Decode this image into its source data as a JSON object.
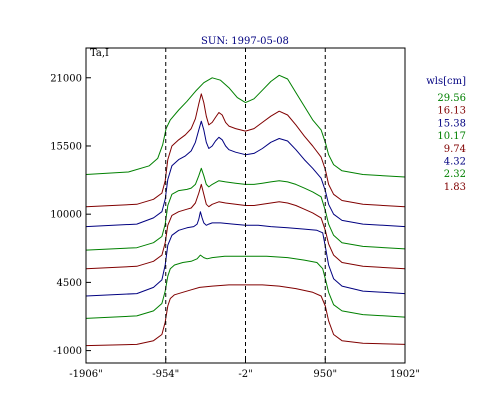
{
  "chart_data": {
    "type": "line",
    "title": "SUN: 1997-05-08",
    "ylabel": "Ta,I",
    "xlim": [
      -1906,
      1902
    ],
    "ylim": [
      -2000,
      23400
    ],
    "x_ticks": [
      {
        "value": -1906,
        "label": "-1906\""
      },
      {
        "value": -954,
        "label": "-954\""
      },
      {
        "value": -2,
        "label": "-2\""
      },
      {
        "value": 950,
        "label": "950\""
      },
      {
        "value": 1902,
        "label": "1902\""
      }
    ],
    "y_ticks": [
      {
        "value": 21000,
        "label": "21000"
      },
      {
        "value": 15500,
        "label": "15500"
      },
      {
        "value": 10000,
        "label": "10000"
      },
      {
        "value": 4500,
        "label": "4500"
      },
      {
        "value": -1000,
        "label": "-1000"
      }
    ],
    "vlines": [
      -954,
      -2,
      950
    ],
    "grid": false,
    "legend": {
      "title": "wls[cm]",
      "placement": "right",
      "entries": [
        {
          "label": "29.56",
          "color": "#008000"
        },
        {
          "label": "16.13",
          "color": "#800000"
        },
        {
          "label": "15.38",
          "color": "#000080"
        },
        {
          "label": "10.17",
          "color": "#008000"
        },
        {
          "label": "9.74",
          "color": "#800000"
        },
        {
          "label": "4.32",
          "color": "#000080"
        },
        {
          "label": "2.32",
          "color": "#008000"
        },
        {
          "label": "1.83",
          "color": "#800000"
        }
      ]
    },
    "series": [
      {
        "name": "29.56",
        "color": "#008000",
        "x": [
          -1906,
          -1400,
          -1150,
          -1050,
          -990,
          -950,
          -900,
          -800,
          -700,
          -600,
          -500,
          -400,
          -300,
          -200,
          -100,
          -2,
          100,
          200,
          300,
          400,
          500,
          600,
          700,
          800,
          900,
          950,
          990,
          1050,
          1150,
          1400,
          1902
        ],
        "y": [
          13200,
          13400,
          13900,
          14500,
          15600,
          16900,
          17600,
          18400,
          19100,
          19900,
          20600,
          21000,
          20800,
          20200,
          19400,
          19000,
          19300,
          20000,
          20700,
          21200,
          20900,
          19800,
          18700,
          17600,
          16800,
          15800,
          14800,
          14000,
          13500,
          13200,
          13000
        ]
      },
      {
        "name": "16.13",
        "color": "#800000",
        "x": [
          -1906,
          -1300,
          -1100,
          -1000,
          -960,
          -930,
          -880,
          -800,
          -720,
          -650,
          -600,
          -560,
          -530,
          -500,
          -470,
          -440,
          -400,
          -360,
          -320,
          -280,
          -240,
          -200,
          -120,
          -2,
          100,
          200,
          300,
          400,
          500,
          600,
          700,
          800,
          900,
          950,
          990,
          1050,
          1150,
          1400,
          1902
        ],
        "y": [
          10600,
          10800,
          11200,
          11700,
          12700,
          14400,
          15500,
          16000,
          16400,
          16900,
          17700,
          18900,
          19700,
          19000,
          17900,
          17200,
          17400,
          17800,
          18200,
          18000,
          17400,
          17100,
          16900,
          16700,
          16900,
          17400,
          17900,
          18300,
          18000,
          17200,
          16300,
          15500,
          14600,
          13600,
          12400,
          11600,
          11100,
          10800,
          10600
        ]
      },
      {
        "name": "15.38",
        "color": "#000080",
        "x": [
          -1906,
          -1300,
          -1100,
          -1000,
          -960,
          -930,
          -880,
          -800,
          -720,
          -650,
          -600,
          -560,
          -530,
          -500,
          -470,
          -440,
          -400,
          -360,
          -320,
          -280,
          -240,
          -200,
          -120,
          -2,
          100,
          200,
          300,
          400,
          500,
          600,
          700,
          800,
          900,
          950,
          990,
          1050,
          1150,
          1400,
          1902
        ],
        "y": [
          9000,
          9200,
          9700,
          10200,
          11200,
          12800,
          13900,
          14400,
          14700,
          15100,
          15800,
          16800,
          17500,
          16800,
          15800,
          15300,
          15500,
          15900,
          16200,
          16000,
          15500,
          15200,
          15000,
          14800,
          14900,
          15300,
          15800,
          16100,
          15900,
          15200,
          14400,
          13700,
          12900,
          11900,
          10800,
          10000,
          9500,
          9200,
          9000
        ]
      },
      {
        "name": "10.17",
        "color": "#008000",
        "x": [
          -1906,
          -1300,
          -1100,
          -1000,
          -960,
          -930,
          -880,
          -800,
          -700,
          -650,
          -600,
          -560,
          -530,
          -500,
          -470,
          -440,
          -400,
          -320,
          -240,
          -120,
          -2,
          100,
          200,
          300,
          400,
          500,
          600,
          700,
          800,
          900,
          950,
          990,
          1050,
          1150,
          1400,
          1902
        ],
        "y": [
          7100,
          7300,
          7700,
          8200,
          9200,
          10700,
          11600,
          11900,
          12000,
          12100,
          12400,
          13100,
          13700,
          13100,
          12400,
          12200,
          12400,
          12700,
          12600,
          12500,
          12400,
          12400,
          12500,
          12600,
          12700,
          12600,
          12400,
          12100,
          11800,
          11400,
          10300,
          9200,
          8300,
          7700,
          7400,
          7200
        ]
      },
      {
        "name": "9.74",
        "color": "#800000",
        "x": [
          -1906,
          -1300,
          -1100,
          -1000,
          -960,
          -930,
          -880,
          -800,
          -700,
          -650,
          -600,
          -560,
          -530,
          -500,
          -470,
          -440,
          -400,
          -320,
          -240,
          -120,
          -2,
          100,
          200,
          300,
          400,
          500,
          600,
          700,
          800,
          900,
          950,
          990,
          1050,
          1150,
          1400,
          1902
        ],
        "y": [
          5600,
          5800,
          6200,
          6700,
          7700,
          9100,
          9900,
          10200,
          10400,
          10500,
          10900,
          11700,
          12400,
          11600,
          10800,
          10600,
          10800,
          11000,
          10900,
          10800,
          10700,
          10700,
          10800,
          10900,
          11000,
          10900,
          10700,
          10400,
          10100,
          9700,
          8700,
          7600,
          6700,
          6100,
          5800,
          5600
        ]
      },
      {
        "name": "4.32",
        "color": "#000080",
        "x": [
          -1906,
          -1300,
          -1100,
          -1000,
          -960,
          -930,
          -880,
          -800,
          -700,
          -620,
          -580,
          -560,
          -540,
          -520,
          -500,
          -470,
          -440,
          -400,
          -300,
          -150,
          -2,
          150,
          300,
          500,
          700,
          850,
          920,
          950,
          990,
          1050,
          1150,
          1400,
          1902
        ],
        "y": [
          3400,
          3600,
          4100,
          4700,
          5900,
          7500,
          8300,
          8700,
          8900,
          9000,
          9200,
          9600,
          10200,
          9700,
          9300,
          9100,
          9200,
          9300,
          9300,
          9200,
          9100,
          9100,
          9000,
          8900,
          8800,
          8700,
          8500,
          7400,
          5900,
          4800,
          4200,
          3800,
          3600
        ]
      },
      {
        "name": "2.32",
        "color": "#008000",
        "x": [
          -1906,
          -1300,
          -1100,
          -1000,
          -960,
          -930,
          -900,
          -850,
          -750,
          -650,
          -580,
          -540,
          -500,
          -460,
          -400,
          -250,
          -2,
          250,
          500,
          700,
          850,
          920,
          950,
          990,
          1050,
          1150,
          1400,
          1902
        ],
        "y": [
          1600,
          1800,
          2200,
          2800,
          3800,
          5000,
          5600,
          5900,
          6100,
          6200,
          6400,
          6700,
          6500,
          6400,
          6500,
          6600,
          6600,
          6600,
          6500,
          6300,
          6100,
          5600,
          4800,
          3700,
          2700,
          2200,
          1900,
          1700
        ]
      },
      {
        "name": "1.83",
        "color": "#800000",
        "x": [
          -1906,
          -1300,
          -1100,
          -1000,
          -960,
          -930,
          -900,
          -850,
          -750,
          -650,
          -550,
          -400,
          -200,
          -2,
          200,
          400,
          600,
          800,
          900,
          950,
          990,
          1050,
          1150,
          1400,
          1902
        ],
        "y": [
          -600,
          -500,
          -200,
          300,
          1300,
          2600,
          3200,
          3500,
          3700,
          3900,
          4100,
          4200,
          4300,
          4300,
          4300,
          4200,
          4000,
          3700,
          3400,
          2600,
          1400,
          300,
          -200,
          -400,
          -500
        ]
      }
    ]
  }
}
